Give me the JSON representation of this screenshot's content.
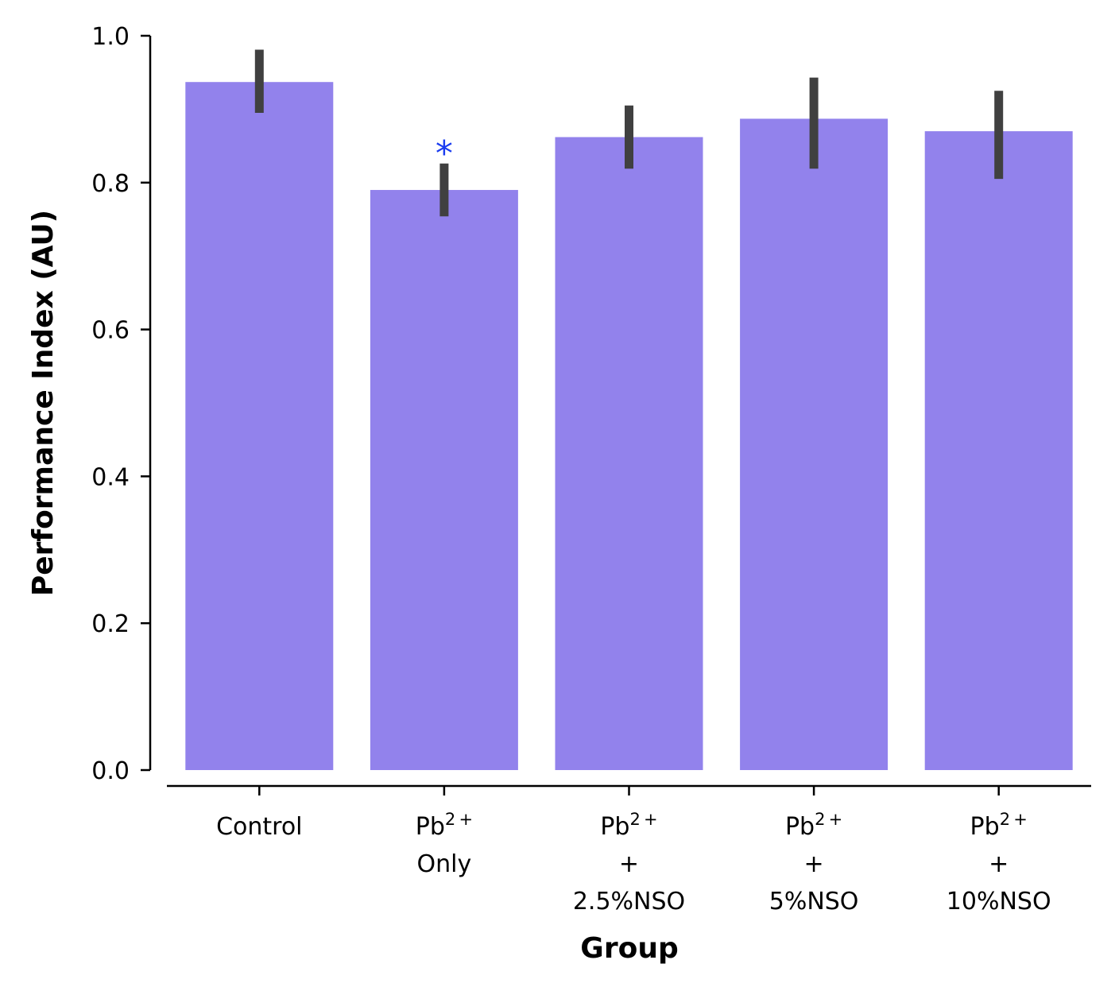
{
  "chart_data": {
    "type": "bar",
    "title": "",
    "xlabel": "Group",
    "ylabel": "Performance Index (AU)",
    "ylim": [
      0.0,
      1.0
    ],
    "yticks": [
      "0.0",
      "0.2",
      "0.4",
      "0.6",
      "0.8",
      "1.0"
    ],
    "categories": [
      {
        "lines": [
          {
            "base": "Control",
            "sup": ""
          }
        ]
      },
      {
        "lines": [
          {
            "base": "Pb",
            "sup": "2+"
          },
          {
            "base": "Only",
            "sup": ""
          }
        ]
      },
      {
        "lines": [
          {
            "base": "Pb",
            "sup": "2+"
          },
          {
            "base": "+",
            "sup": ""
          },
          {
            "base": "2.5%NSO",
            "sup": ""
          }
        ]
      },
      {
        "lines": [
          {
            "base": "Pb",
            "sup": "2+"
          },
          {
            "base": "+",
            "sup": ""
          },
          {
            "base": "5%NSO",
            "sup": ""
          }
        ]
      },
      {
        "lines": [
          {
            "base": "Pb",
            "sup": "2+"
          },
          {
            "base": "+",
            "sup": ""
          },
          {
            "base": "10%NSO",
            "sup": ""
          }
        ]
      }
    ],
    "values": [
      0.937,
      0.79,
      0.862,
      0.887,
      0.87
    ],
    "error_low": [
      0.895,
      0.754,
      0.819,
      0.819,
      0.805
    ],
    "error_high": [
      0.981,
      0.826,
      0.905,
      0.943,
      0.925
    ],
    "annotations": [
      {
        "category_index": 1,
        "text": "*",
        "color": "#1a3cf0"
      }
    ],
    "bar_color": "#9282ec",
    "error_color": "#404040",
    "grid": false,
    "legend": "none"
  }
}
